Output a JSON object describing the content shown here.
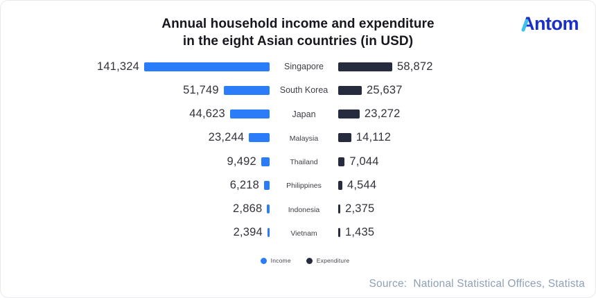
{
  "header": {
    "title_line1": "Annual household income and expenditure",
    "title_line2": "in the eight Asian countries (in USD)",
    "logo_text": "Antom"
  },
  "chart_data": {
    "type": "bar",
    "variant": "diverging-horizontal",
    "title": "Annual household income and expenditure in the eight Asian countries (in USD)",
    "categories": [
      "Singapore",
      "South Korea",
      "Japan",
      "Malaysia",
      "Thailand",
      "Philippines",
      "Indonesia",
      "Vietnam"
    ],
    "series": [
      {
        "name": "Income",
        "color": "#2B7CF9",
        "values": [
          141324,
          51749,
          44623,
          23244,
          9492,
          6218,
          2868,
          2394
        ]
      },
      {
        "name": "Expenditure",
        "color": "#262C3E",
        "values": [
          58872,
          25637,
          23272,
          14112,
          7044,
          4544,
          2375,
          1435
        ]
      }
    ],
    "value_format": "comma-thousands",
    "grid": false,
    "legend_position": "bottom",
    "value_labels_shown": true
  },
  "legend": [
    {
      "label": "Income",
      "color": "#2B7CF9"
    },
    {
      "label": "Expenditure",
      "color": "#262C3E"
    }
  ],
  "source": "Source:  National Statistical Offices, Statista"
}
